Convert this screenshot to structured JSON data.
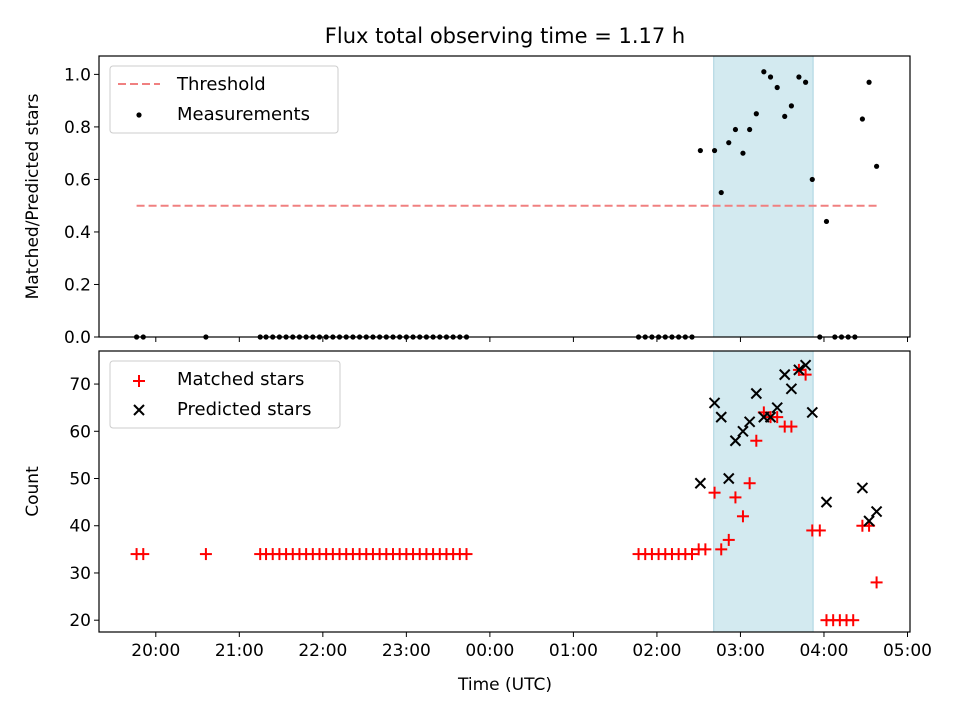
{
  "chart_data": {
    "title": "Flux total observing time = 1.17 h",
    "xlabel": "Time (UTC)",
    "x_tick_labels": [
      "20:00",
      "21:00",
      "22:00",
      "23:00",
      "00:00",
      "01:00",
      "02:00",
      "03:00",
      "04:00",
      "05:00"
    ],
    "x_tick_hours": [
      20,
      21,
      22,
      23,
      24,
      25,
      26,
      27,
      28,
      29
    ],
    "x_range_hours": [
      19.32,
      29.03
    ],
    "highlight_span_hours": [
      26.68,
      27.87
    ],
    "highlight_color": "#d3eaf0",
    "panels": [
      {
        "type": "scatter",
        "ylabel": "Matched/Predicted stars",
        "ylim": [
          0,
          1.07
        ],
        "y_ticks": [
          0.0,
          0.2,
          0.4,
          0.6,
          0.8,
          1.0
        ],
        "y_tick_labels": [
          "0.0",
          "0.2",
          "0.4",
          "0.6",
          "0.8",
          "1.0"
        ],
        "legend_position": "upper-left",
        "threshold": {
          "name": "Threshold",
          "y": 0.5,
          "x_range_hours": [
            19.77,
            28.63
          ],
          "color": "#f08080"
        },
        "series": [
          {
            "name": "Measurements",
            "color": "#000000",
            "marker": "dot",
            "points": [
              [
                19.77,
                0.0
              ],
              [
                19.85,
                0.0
              ],
              [
                20.6,
                0.0
              ],
              [
                21.25,
                0.0
              ],
              [
                21.32,
                0.0
              ],
              [
                21.4,
                0.0
              ],
              [
                21.48,
                0.0
              ],
              [
                21.56,
                0.0
              ],
              [
                21.64,
                0.0
              ],
              [
                21.72,
                0.0
              ],
              [
                21.8,
                0.0
              ],
              [
                21.88,
                0.0
              ],
              [
                21.96,
                0.0
              ],
              [
                22.04,
                0.0
              ],
              [
                22.12,
                0.0
              ],
              [
                22.2,
                0.0
              ],
              [
                22.28,
                0.0
              ],
              [
                22.36,
                0.0
              ],
              [
                22.44,
                0.0
              ],
              [
                22.52,
                0.0
              ],
              [
                22.6,
                0.0
              ],
              [
                22.68,
                0.0
              ],
              [
                22.76,
                0.0
              ],
              [
                22.84,
                0.0
              ],
              [
                22.92,
                0.0
              ],
              [
                23.0,
                0.0
              ],
              [
                23.08,
                0.0
              ],
              [
                23.16,
                0.0
              ],
              [
                23.24,
                0.0
              ],
              [
                23.32,
                0.0
              ],
              [
                23.4,
                0.0
              ],
              [
                23.48,
                0.0
              ],
              [
                23.56,
                0.0
              ],
              [
                23.64,
                0.0
              ],
              [
                23.72,
                0.0
              ],
              [
                25.78,
                0.0
              ],
              [
                25.86,
                0.0
              ],
              [
                25.94,
                0.0
              ],
              [
                26.02,
                0.0
              ],
              [
                26.1,
                0.0
              ],
              [
                26.18,
                0.0
              ],
              [
                26.26,
                0.0
              ],
              [
                26.34,
                0.0
              ],
              [
                26.42,
                0.0
              ],
              [
                26.52,
                0.71
              ],
              [
                26.69,
                0.71
              ],
              [
                26.77,
                0.55
              ],
              [
                26.86,
                0.74
              ],
              [
                26.94,
                0.79
              ],
              [
                27.03,
                0.7
              ],
              [
                27.11,
                0.79
              ],
              [
                27.19,
                0.85
              ],
              [
                27.28,
                1.01
              ],
              [
                27.36,
                0.99
              ],
              [
                27.44,
                0.95
              ],
              [
                27.53,
                0.84
              ],
              [
                27.61,
                0.88
              ],
              [
                27.7,
                0.99
              ],
              [
                27.78,
                0.97
              ],
              [
                27.86,
                0.6
              ],
              [
                27.95,
                0.0
              ],
              [
                28.03,
                0.44
              ],
              [
                28.13,
                0.0
              ],
              [
                28.21,
                0.0
              ],
              [
                28.29,
                0.0
              ],
              [
                28.37,
                0.0
              ],
              [
                28.46,
                0.83
              ],
              [
                28.54,
                0.97
              ],
              [
                28.63,
                0.65
              ]
            ]
          }
        ]
      },
      {
        "type": "scatter",
        "ylabel": "Count",
        "ylim": [
          17.5,
          77
        ],
        "y_ticks": [
          20,
          30,
          40,
          50,
          60,
          70
        ],
        "y_tick_labels": [
          "20",
          "30",
          "40",
          "50",
          "60",
          "70"
        ],
        "legend_position": "upper-left",
        "series": [
          {
            "name": "Matched stars",
            "color": "#ff0000",
            "marker": "plus",
            "points": [
              [
                19.77,
                34
              ],
              [
                19.85,
                34
              ],
              [
                20.6,
                34
              ],
              [
                21.25,
                34
              ],
              [
                21.32,
                34
              ],
              [
                21.4,
                34
              ],
              [
                21.48,
                34
              ],
              [
                21.56,
                34
              ],
              [
                21.64,
                34
              ],
              [
                21.72,
                34
              ],
              [
                21.8,
                34
              ],
              [
                21.88,
                34
              ],
              [
                21.96,
                34
              ],
              [
                22.04,
                34
              ],
              [
                22.12,
                34
              ],
              [
                22.2,
                34
              ],
              [
                22.28,
                34
              ],
              [
                22.36,
                34
              ],
              [
                22.44,
                34
              ],
              [
                22.52,
                34
              ],
              [
                22.6,
                34
              ],
              [
                22.68,
                34
              ],
              [
                22.76,
                34
              ],
              [
                22.84,
                34
              ],
              [
                22.92,
                34
              ],
              [
                23.0,
                34
              ],
              [
                23.08,
                34
              ],
              [
                23.16,
                34
              ],
              [
                23.24,
                34
              ],
              [
                23.32,
                34
              ],
              [
                23.4,
                34
              ],
              [
                23.48,
                34
              ],
              [
                23.56,
                34
              ],
              [
                23.64,
                34
              ],
              [
                23.72,
                34
              ],
              [
                25.78,
                34
              ],
              [
                25.86,
                34
              ],
              [
                25.94,
                34
              ],
              [
                26.02,
                34
              ],
              [
                26.1,
                34
              ],
              [
                26.18,
                34
              ],
              [
                26.26,
                34
              ],
              [
                26.34,
                34
              ],
              [
                26.42,
                34
              ],
              [
                26.5,
                35
              ],
              [
                26.58,
                35
              ],
              [
                26.69,
                47
              ],
              [
                26.77,
                35
              ],
              [
                26.86,
                37
              ],
              [
                26.94,
                46
              ],
              [
                27.03,
                42
              ],
              [
                27.11,
                49
              ],
              [
                27.19,
                58
              ],
              [
                27.28,
                64
              ],
              [
                27.36,
                63
              ],
              [
                27.44,
                63
              ],
              [
                27.53,
                61
              ],
              [
                27.61,
                61
              ],
              [
                27.7,
                73
              ],
              [
                27.78,
                72
              ],
              [
                27.86,
                39
              ],
              [
                27.95,
                39
              ],
              [
                28.03,
                20
              ],
              [
                28.11,
                20
              ],
              [
                28.19,
                20
              ],
              [
                28.27,
                20
              ],
              [
                28.35,
                20
              ],
              [
                28.46,
                40
              ],
              [
                28.54,
                40
              ],
              [
                28.63,
                28
              ]
            ]
          },
          {
            "name": "Predicted stars",
            "color": "#000000",
            "marker": "x",
            "points": [
              [
                26.52,
                49
              ],
              [
                26.69,
                66
              ],
              [
                26.77,
                63
              ],
              [
                26.86,
                50
              ],
              [
                26.94,
                58
              ],
              [
                27.03,
                60
              ],
              [
                27.11,
                62
              ],
              [
                27.19,
                68
              ],
              [
                27.28,
                63
              ],
              [
                27.36,
                63
              ],
              [
                27.44,
                65
              ],
              [
                27.53,
                72
              ],
              [
                27.61,
                69
              ],
              [
                27.7,
                73
              ],
              [
                27.78,
                74
              ],
              [
                27.86,
                64
              ],
              [
                28.03,
                45
              ],
              [
                28.46,
                48
              ],
              [
                28.54,
                41
              ],
              [
                28.63,
                43
              ]
            ]
          }
        ]
      }
    ]
  }
}
